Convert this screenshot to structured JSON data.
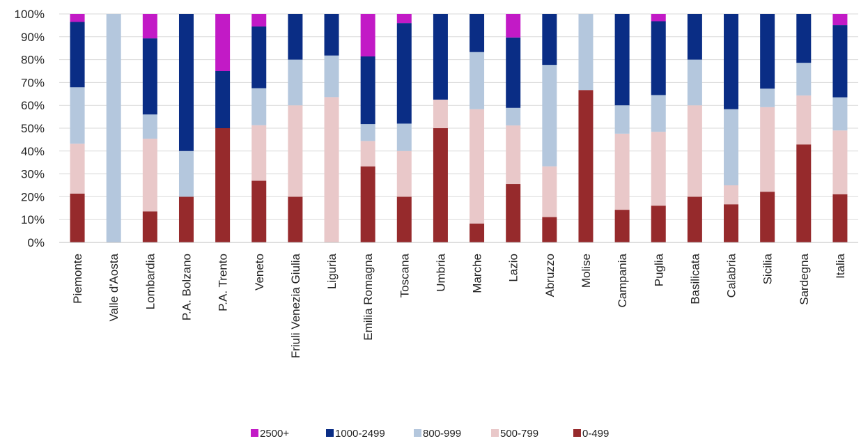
{
  "chart_data": {
    "type": "bar",
    "stacked": true,
    "percent": true,
    "title": "",
    "xlabel": "",
    "ylabel": "",
    "ylim": [
      0,
      100
    ],
    "y_ticks": [
      "0%",
      "10%",
      "20%",
      "30%",
      "40%",
      "50%",
      "60%",
      "70%",
      "80%",
      "90%",
      "100%"
    ],
    "grid": "horizontal",
    "legend_position": "bottom",
    "categories": [
      "Piemonte",
      "Valle d'Aosta",
      "Lombardia",
      "P.A. Bolzano",
      "P.A. Trento",
      "Veneto",
      "Friuli Venezia Giulia",
      "Liguria",
      "Emilia Romagna",
      "Toscana",
      "Umbria",
      "Marche",
      "Lazio",
      "Abruzzo",
      "Molise",
      "Campania",
      "Puglia",
      "Basilicata",
      "Calabria",
      "Sicilia",
      "Sardegna",
      "Italia"
    ],
    "series": [
      {
        "name": "0-499",
        "color": "#962a2c",
        "values": [
          21.4,
          0,
          13.6,
          20,
          50,
          27,
          20,
          0,
          33.3,
          20,
          50,
          8.3,
          25.6,
          11.1,
          66.7,
          14.3,
          16.1,
          20,
          16.7,
          22.2,
          42.9,
          21.1
        ]
      },
      {
        "name": "500-799",
        "color": "#e9c8c9",
        "values": [
          21.8,
          0,
          31.8,
          0,
          0,
          24.3,
          40,
          63.6,
          11.1,
          20,
          12.5,
          50,
          25.6,
          22.2,
          0,
          33.3,
          32.3,
          40,
          8.3,
          37,
          21.4,
          27.9
        ]
      },
      {
        "name": "800-999",
        "color": "#b4c7dd",
        "values": [
          24.7,
          100,
          10.6,
          20,
          0,
          16.2,
          20,
          18.2,
          7.4,
          12,
          0,
          25,
          7.7,
          44.4,
          33.3,
          12.4,
          16.1,
          20,
          33.3,
          8.1,
          14.3,
          14.5
        ]
      },
      {
        "name": "1000-2499",
        "color": "#0a2d85",
        "values": [
          28.6,
          0,
          33.3,
          60,
          25,
          27,
          20,
          18.2,
          29.6,
          44,
          37.5,
          16.7,
          30.8,
          22.3,
          0,
          40,
          32.3,
          20,
          41.7,
          32.7,
          21.4,
          31.6
        ]
      },
      {
        "name": "2500+",
        "color": "#c21ac6",
        "values": [
          3.5,
          0,
          10.7,
          0,
          25,
          5.5,
          0,
          0,
          18.6,
          4,
          0,
          0,
          10.3,
          0,
          0,
          0,
          3.2,
          0,
          0,
          0,
          0,
          4.9
        ]
      }
    ]
  }
}
